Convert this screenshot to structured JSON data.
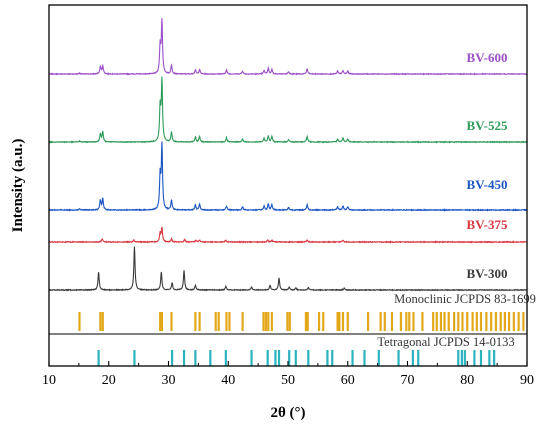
{
  "chart_data": {
    "type": "line",
    "xlabel": "2θ (°)",
    "ylabel": "Intensity (a.u.)",
    "xlim": [
      10,
      90
    ],
    "x_ticks": [
      10,
      20,
      30,
      40,
      50,
      60,
      70,
      80,
      90
    ],
    "grid": false,
    "series": [
      {
        "name": "BV-600",
        "color": "#9b4fc8",
        "peaks": [
          [
            15.1,
            0.015
          ],
          [
            18.6,
            0.13
          ],
          [
            19.0,
            0.14
          ],
          [
            28.6,
            0.47
          ],
          [
            28.9,
            0.9
          ],
          [
            30.5,
            0.15
          ],
          [
            34.5,
            0.07
          ],
          [
            35.2,
            0.08
          ],
          [
            39.7,
            0.07
          ],
          [
            42.4,
            0.05
          ],
          [
            46.0,
            0.06
          ],
          [
            46.7,
            0.1
          ],
          [
            47.3,
            0.08
          ],
          [
            50.1,
            0.04
          ],
          [
            53.2,
            0.09
          ],
          [
            58.3,
            0.05
          ],
          [
            59.2,
            0.06
          ],
          [
            60.0,
            0.05
          ]
        ]
      },
      {
        "name": "BV-525",
        "color": "#2e9b5a",
        "peaks": [
          [
            15.1,
            0.015
          ],
          [
            18.6,
            0.14
          ],
          [
            19.0,
            0.16
          ],
          [
            28.6,
            0.55
          ],
          [
            28.9,
            0.98
          ],
          [
            30.5,
            0.16
          ],
          [
            34.5,
            0.08
          ],
          [
            35.2,
            0.09
          ],
          [
            39.7,
            0.07
          ],
          [
            42.4,
            0.05
          ],
          [
            46.0,
            0.06
          ],
          [
            46.7,
            0.1
          ],
          [
            47.3,
            0.09
          ],
          [
            50.1,
            0.04
          ],
          [
            53.2,
            0.09
          ],
          [
            58.3,
            0.05
          ],
          [
            59.2,
            0.07
          ],
          [
            60.0,
            0.05
          ]
        ]
      },
      {
        "name": "BV-450",
        "color": "#1a55c4",
        "peaks": [
          [
            15.1,
            0.015
          ],
          [
            18.6,
            0.15
          ],
          [
            19.0,
            0.17
          ],
          [
            28.6,
            0.5
          ],
          [
            28.9,
            0.97
          ],
          [
            30.5,
            0.15
          ],
          [
            34.5,
            0.08
          ],
          [
            35.2,
            0.09
          ],
          [
            39.7,
            0.06
          ],
          [
            42.4,
            0.05
          ],
          [
            46.0,
            0.06
          ],
          [
            46.7,
            0.09
          ],
          [
            47.3,
            0.08
          ],
          [
            50.1,
            0.04
          ],
          [
            53.2,
            0.08
          ],
          [
            58.3,
            0.05
          ],
          [
            59.2,
            0.06
          ],
          [
            60.0,
            0.05
          ]
        ]
      },
      {
        "name": "BV-375",
        "color": "#d9363e",
        "peaks": [
          [
            18.9,
            0.05
          ],
          [
            24.2,
            0.03
          ],
          [
            28.6,
            0.14
          ],
          [
            28.9,
            0.22
          ],
          [
            30.5,
            0.05
          ],
          [
            32.7,
            0.04
          ],
          [
            34.6,
            0.03
          ],
          [
            35.2,
            0.03
          ],
          [
            39.6,
            0.03
          ],
          [
            46.6,
            0.03
          ],
          [
            47.3,
            0.03
          ],
          [
            53.2,
            0.03
          ],
          [
            59.2,
            0.03
          ]
        ]
      },
      {
        "name": "BV-300",
        "color": "#3a3a3a",
        "peaks": [
          [
            18.3,
            0.3
          ],
          [
            24.3,
            0.72
          ],
          [
            28.8,
            0.3
          ],
          [
            30.6,
            0.12
          ],
          [
            32.6,
            0.33
          ],
          [
            34.5,
            0.08
          ],
          [
            39.6,
            0.06
          ],
          [
            43.9,
            0.05
          ],
          [
            47.0,
            0.08
          ],
          [
            48.5,
            0.2
          ],
          [
            50.2,
            0.05
          ],
          [
            51.3,
            0.04
          ],
          [
            53.4,
            0.04
          ],
          [
            59.4,
            0.03
          ]
        ]
      }
    ],
    "reference_patterns": [
      {
        "name": "Monoclinic JCPDS 83-1699",
        "color": "#e3a81a",
        "positions": [
          15.1,
          18.6,
          19.0,
          28.6,
          28.9,
          30.5,
          34.5,
          35.2,
          37.9,
          38.4,
          39.7,
          40.2,
          42.4,
          45.9,
          46.3,
          46.7,
          47.3,
          49.9,
          50.3,
          53.0,
          53.3,
          55.2,
          55.9,
          58.3,
          58.6,
          59.2,
          60.0,
          63.4,
          65.5,
          66.2,
          67.4,
          68.9,
          69.8,
          70.3,
          71.0,
          72.5,
          74.3,
          74.9,
          75.6,
          76.2,
          76.9,
          77.8,
          78.5,
          79.2,
          80.0,
          80.9,
          81.6,
          82.3,
          83.2,
          84.0,
          84.8,
          85.6,
          86.3,
          87.0,
          87.8,
          88.6,
          89.4
        ]
      },
      {
        "name": "Tetragonal JCPDS 14-0133",
        "color": "#2bb3c0",
        "positions": [
          18.3,
          24.3,
          30.6,
          32.6,
          34.5,
          37.0,
          39.6,
          43.9,
          46.6,
          47.9,
          48.5,
          50.2,
          51.3,
          53.4,
          56.6,
          57.4,
          60.8,
          62.8,
          65.2,
          68.5,
          70.9,
          71.8,
          78.5,
          79.1,
          79.6,
          81.2,
          82.3,
          83.7,
          84.5
        ]
      }
    ]
  }
}
